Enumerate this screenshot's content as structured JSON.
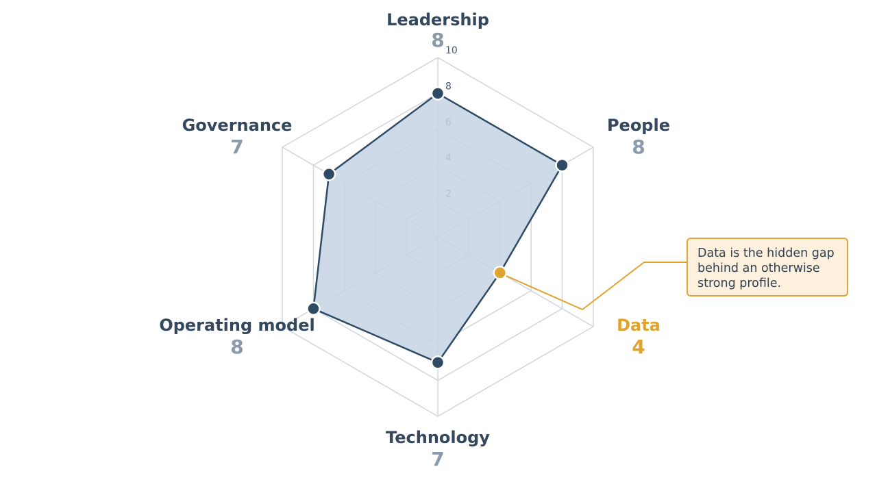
{
  "chart_data": {
    "type": "radar",
    "title": "",
    "r_max": 10,
    "rings": [
      2,
      4,
      6,
      8,
      10
    ],
    "tick_labels": [
      "2",
      "4",
      "6",
      "8",
      "10"
    ],
    "axes": [
      {
        "name": "Leadership",
        "value": 8,
        "value_label": "8",
        "highlight": false
      },
      {
        "name": "People",
        "value": 8,
        "value_label": "8",
        "highlight": false
      },
      {
        "name": "Data",
        "value": 4,
        "value_label": "4",
        "highlight": true
      },
      {
        "name": "Technology",
        "value": 7,
        "value_label": "7",
        "highlight": false
      },
      {
        "name": "Operating model",
        "value": 8,
        "value_label": "8",
        "highlight": false
      },
      {
        "name": "Governance",
        "value": 7,
        "value_label": "7",
        "highlight": false
      }
    ],
    "annotation": "Data is the hidden gap behind an otherwise strong profile.",
    "colors": {
      "series_line": "#2f4a64",
      "series_fill": "#c5d3e3",
      "grid": "#cfd6df",
      "highlight": "#e0a32e",
      "label": "#34475c",
      "score": "#8a9bab",
      "callout_bg": "#fdf0dc"
    }
  }
}
